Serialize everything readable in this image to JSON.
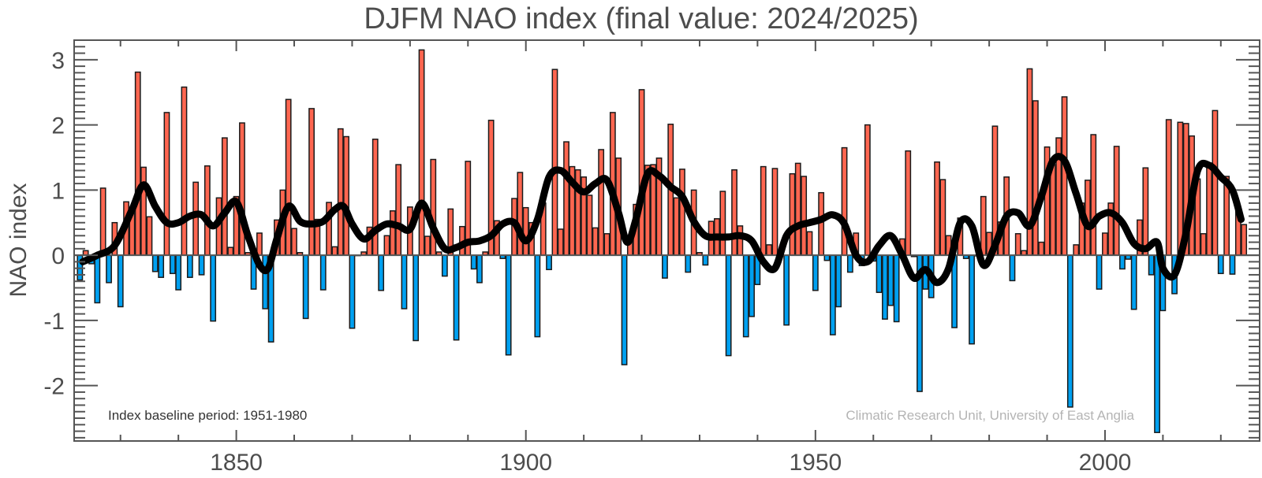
{
  "chart_data": {
    "type": "bar",
    "title": "DJFM NAO index (final value: 2024/2025)",
    "xlabel": "",
    "ylabel": "NAO index",
    "xlim": [
      1822,
      2026.7
    ],
    "ylim": [
      -2.85,
      3.3
    ],
    "x_ticks": [
      1850,
      1900,
      1950,
      2000
    ],
    "x_tick_labels": [
      "1850",
      "1900",
      "1950",
      "2000"
    ],
    "y_ticks": [
      -2,
      -1,
      0,
      1,
      2,
      3
    ],
    "y_tick_labels": [
      "-2",
      "-1",
      "0",
      "1",
      "2",
      "3"
    ],
    "annotation_left": "Index baseline period: 1951-1980",
    "annotation_right": "Climatic Research Unit, University of East Anglia",
    "colors": {
      "positive": "#ff6650",
      "negative": "#00a0f0",
      "smooth": "#000000",
      "axis": "#555555",
      "text": "#4d4d4d"
    },
    "series": [
      {
        "name": "NAO index",
        "x_start": 1823,
        "values": [
          -0.38,
          0.07,
          -0.13,
          -0.73,
          1.03,
          -0.42,
          0.5,
          -0.79,
          0.82,
          0.65,
          2.81,
          1.35,
          0.59,
          -0.25,
          -0.34,
          2.19,
          -0.28,
          -0.53,
          2.58,
          -0.34,
          1.12,
          -0.3,
          1.37,
          -1.01,
          0.88,
          1.8,
          0.12,
          0.9,
          2.03,
          0.04,
          -0.52,
          0.34,
          -0.82,
          -1.33,
          0.54,
          1.0,
          2.39,
          0.41,
          0.04,
          -0.97,
          2.25,
          0.55,
          -0.53,
          0.81,
          0.13,
          1.94,
          1.82,
          -1.12,
          0.0,
          0.05,
          0.43,
          1.78,
          -0.54,
          0.3,
          0.68,
          1.39,
          -0.82,
          0.74,
          -1.31,
          3.15,
          0.29,
          1.47,
          0.05,
          -0.32,
          0.71,
          -1.3,
          0.44,
          1.44,
          -0.21,
          -0.42,
          0.05,
          2.07,
          0.53,
          -0.05,
          -1.53,
          0.87,
          1.27,
          0.73,
          0.5,
          -1.25,
          0.8,
          -0.22,
          2.85,
          0.4,
          1.74,
          1.36,
          1.31,
          1.2,
          0.92,
          0.42,
          1.62,
          0.33,
          2.19,
          1.49,
          -1.68,
          0.22,
          0.78,
          2.54,
          1.38,
          1.39,
          1.49,
          -0.35,
          2.01,
          0.88,
          1.32,
          -0.26,
          1.0,
          0.04,
          -0.15,
          0.52,
          0.56,
          0.98,
          -1.54,
          1.31,
          0.45,
          -1.25,
          -0.94,
          -0.45,
          1.36,
          0.16,
          1.33,
          0.0,
          -1.07,
          1.25,
          1.41,
          1.21,
          0.36,
          -0.54,
          0.96,
          -0.08,
          -1.22,
          -0.79,
          1.65,
          -0.26,
          0.34,
          -0.16,
          2.0,
          -0.09,
          -0.57,
          -0.98,
          -0.77,
          -1.02,
          0.25,
          1.6,
          -0.02,
          -2.09,
          -0.52,
          -0.65,
          1.43,
          1.16,
          0.3,
          -1.11,
          0.57,
          -0.05,
          -1.36,
          -0.01,
          0.9,
          0.35,
          1.98,
          0.51,
          1.2,
          -0.39,
          0.33,
          0.07,
          2.86,
          2.37,
          0.2,
          1.66,
          1.39,
          1.8,
          2.43,
          -2.33,
          0.16,
          0.8,
          1.15,
          1.85,
          -0.52,
          0.34,
          0.8,
          1.67,
          -0.21,
          -0.06,
          -0.83,
          0.54,
          1.34,
          -0.3,
          -2.72,
          -0.85,
          2.08,
          -0.59,
          2.04,
          2.02,
          1.83,
          1.17,
          0.33,
          1.35,
          2.22,
          -0.28,
          1.21,
          -0.29,
          0.71,
          0.47
        ]
      },
      {
        "name": "Smoothed",
        "type": "line",
        "x": [
          1823.5,
          1826,
          1829,
          1832,
          1834,
          1836,
          1838,
          1840,
          1842,
          1844,
          1846,
          1848,
          1850,
          1852,
          1854,
          1855.5,
          1857,
          1859,
          1861,
          1863,
          1865,
          1867,
          1868.5,
          1870,
          1872,
          1874,
          1876,
          1878,
          1880,
          1882,
          1884,
          1886,
          1888,
          1890,
          1892,
          1894,
          1896,
          1898,
          1900,
          1902,
          1904,
          1906,
          1908,
          1910,
          1912,
          1914,
          1916,
          1917.5,
          1919,
          1921,
          1923,
          1925,
          1927,
          1929,
          1931,
          1933,
          1935,
          1937,
          1939,
          1941,
          1943,
          1945,
          1947,
          1949,
          1951,
          1953,
          1955,
          1957,
          1959,
          1961,
          1963,
          1965,
          1967,
          1969,
          1971,
          1973,
          1975,
          1977,
          1979,
          1981,
          1983,
          1985,
          1987,
          1989,
          1991,
          1993,
          1995,
          1997,
          1999,
          2001,
          2003,
          2005,
          2007,
          2009,
          2010,
          2012,
          2014,
          2016,
          2018,
          2020,
          2022,
          2023.5
        ],
        "values": [
          -0.1,
          0.0,
          0.15,
          0.7,
          1.08,
          0.75,
          0.5,
          0.5,
          0.6,
          0.62,
          0.45,
          0.65,
          0.82,
          0.3,
          -0.15,
          -0.2,
          0.25,
          0.75,
          0.52,
          0.48,
          0.52,
          0.7,
          0.75,
          0.48,
          0.25,
          0.38,
          0.48,
          0.45,
          0.4,
          0.8,
          0.42,
          0.1,
          0.12,
          0.2,
          0.22,
          0.3,
          0.48,
          0.5,
          0.22,
          0.55,
          1.2,
          1.3,
          1.12,
          0.97,
          1.1,
          1.15,
          0.65,
          0.2,
          0.55,
          1.25,
          1.22,
          1.05,
          0.9,
          0.52,
          0.3,
          0.28,
          0.28,
          0.3,
          0.22,
          -0.1,
          -0.2,
          0.3,
          0.45,
          0.5,
          0.55,
          0.62,
          0.48,
          0.0,
          -0.1,
          0.15,
          0.3,
          0.0,
          -0.35,
          -0.22,
          -0.42,
          -0.2,
          0.5,
          0.45,
          -0.15,
          0.15,
          0.6,
          0.65,
          0.45,
          0.9,
          1.45,
          1.45,
          0.95,
          0.45,
          0.6,
          0.65,
          0.5,
          0.18,
          0.1,
          0.2,
          -0.2,
          -0.3,
          0.35,
          1.3,
          1.38,
          1.2,
          1.0,
          0.55
        ]
      }
    ]
  }
}
